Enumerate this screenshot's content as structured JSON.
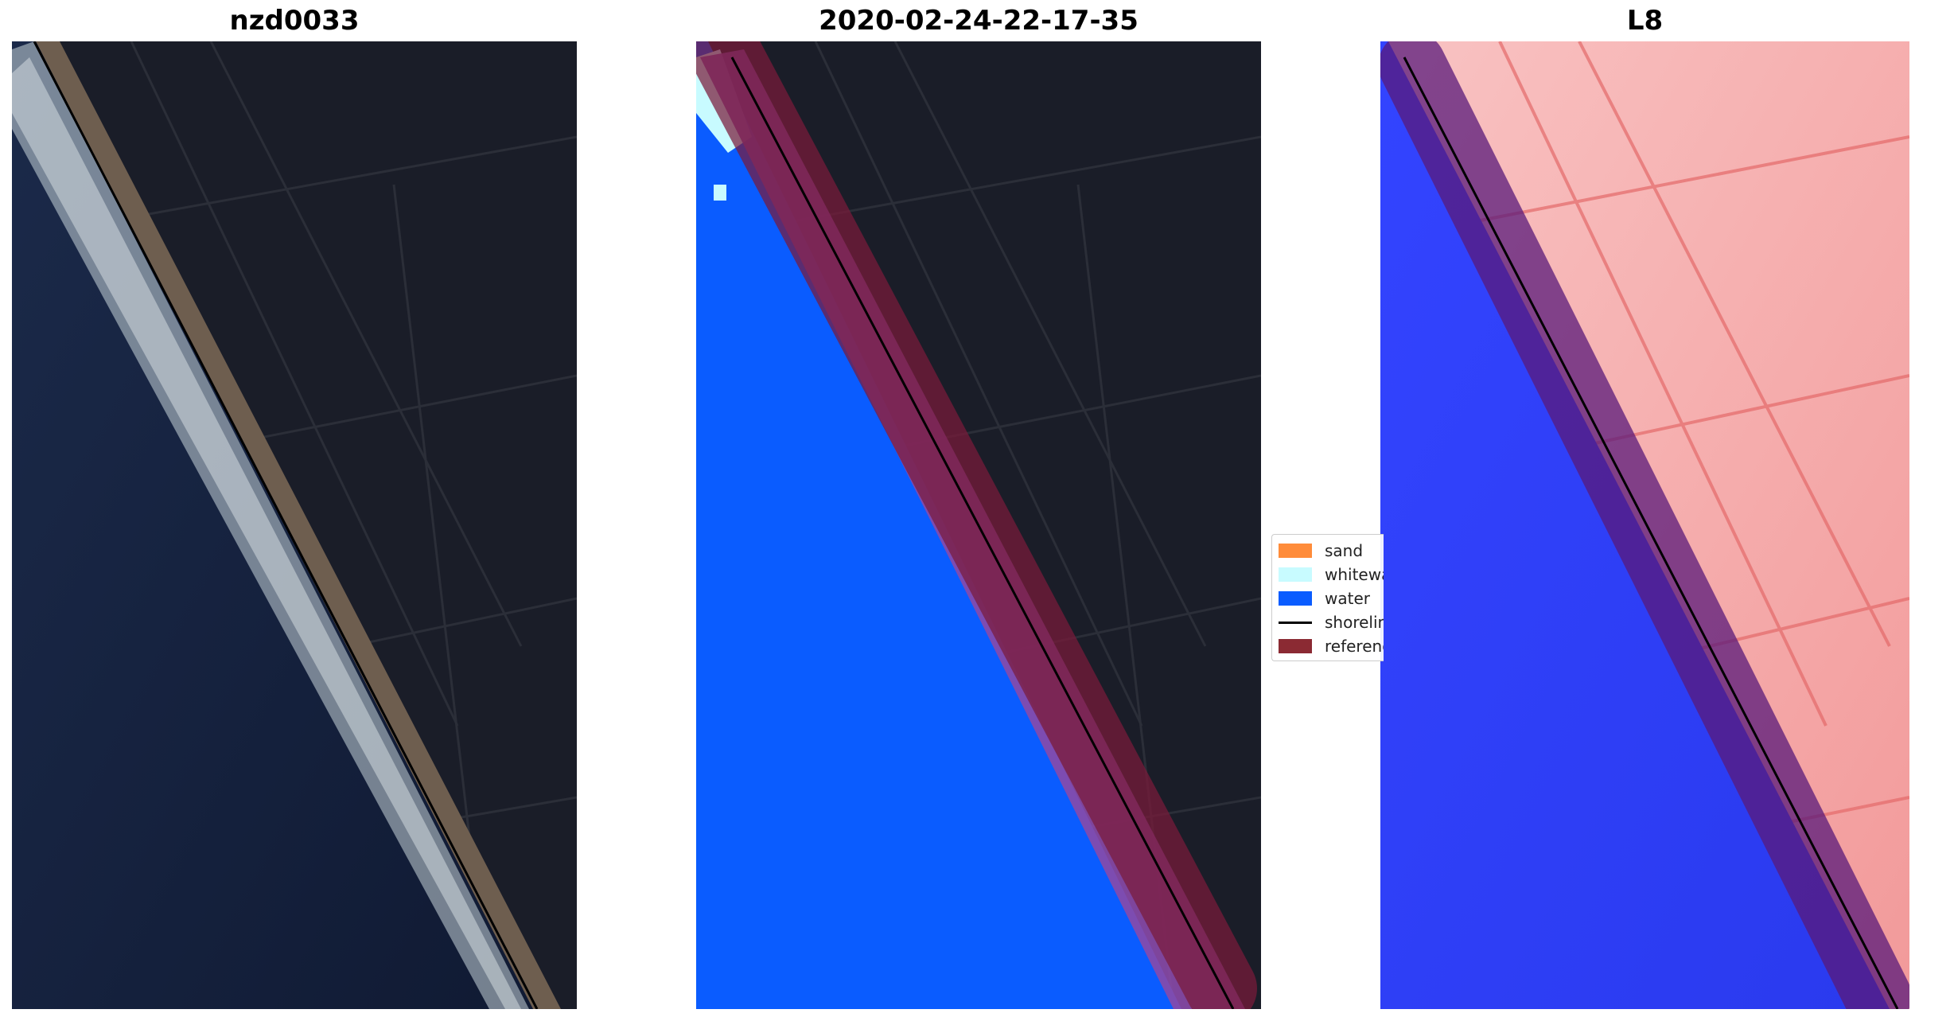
{
  "panels": [
    {
      "title": "nzd0033",
      "kind": "rgb-image"
    },
    {
      "title": "2020-02-24-22-17-35",
      "kind": "classification-overlay"
    },
    {
      "title": "L8",
      "kind": "index-image"
    }
  ],
  "legend": {
    "items": [
      {
        "label": "sand",
        "type": "patch",
        "color": "#ff8c3a"
      },
      {
        "label": "whitewater",
        "type": "patch",
        "color": "#c8fbff"
      },
      {
        "label": "water",
        "type": "patch",
        "color": "#0a5cff"
      },
      {
        "label": "shoreline",
        "type": "line",
        "color": "#000000"
      },
      {
        "label": "reference shoreline buffer",
        "type": "patch",
        "color": "#8b2a33"
      }
    ]
  },
  "colors": {
    "land_dark": "#1a1d28",
    "ocean_deep": "#141e38",
    "surf": "#c9d6da",
    "sand_beach": "#6e5e4f",
    "class_water": "#0a5cff",
    "class_whitewater": "#c8fbff",
    "buffer": "#7a1a3a",
    "index_water": "#2233ff",
    "index_land": "#f7b6b6"
  }
}
